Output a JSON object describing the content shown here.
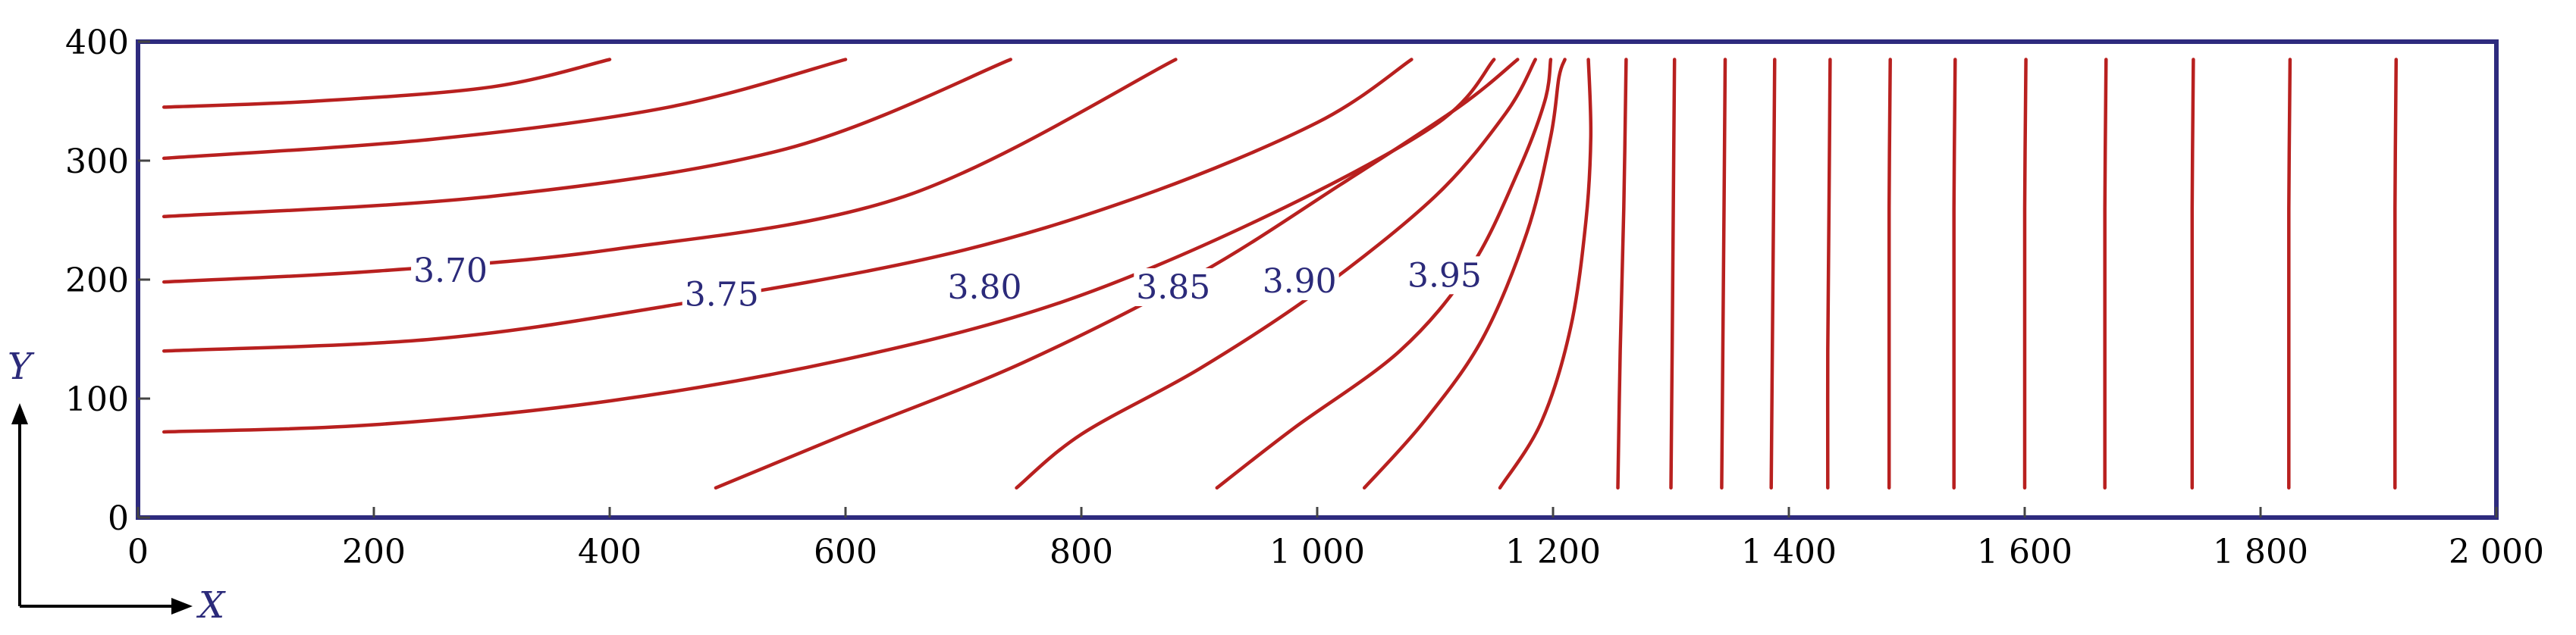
{
  "chart_data": {
    "type": "line",
    "title": "",
    "xlabel": "X",
    "ylabel": "Y",
    "xlim": [
      0,
      2000
    ],
    "ylim": [
      0,
      400
    ],
    "x_ticks": [
      {
        "value": 0,
        "label": "0"
      },
      {
        "value": 200,
        "label": "200"
      },
      {
        "value": 400,
        "label": "400"
      },
      {
        "value": 600,
        "label": "600"
      },
      {
        "value": 800,
        "label": "800"
      },
      {
        "value": 1000,
        "label": "1 000"
      },
      {
        "value": 1200,
        "label": "1 200"
      },
      {
        "value": 1400,
        "label": "1 400"
      },
      {
        "value": 1600,
        "label": "1 600"
      },
      {
        "value": 1800,
        "label": "1 800"
      },
      {
        "value": 2000,
        "label": "2 000"
      }
    ],
    "y_ticks": [
      {
        "value": 0,
        "label": "0"
      },
      {
        "value": 100,
        "label": "100"
      },
      {
        "value": 200,
        "label": "200"
      },
      {
        "value": 300,
        "label": "300"
      },
      {
        "value": 400,
        "label": "400"
      }
    ],
    "grid": false,
    "colors": {
      "contour": "#b8201f",
      "frame": "#2e2b7e",
      "label": "#2b2a7a"
    },
    "contour_labels": [
      {
        "text": "3.70",
        "x": 265,
        "y": 207
      },
      {
        "text": "3.75",
        "x": 495,
        "y": 187
      },
      {
        "text": "3.80",
        "x": 718,
        "y": 193
      },
      {
        "text": "3.85",
        "x": 878,
        "y": 193
      },
      {
        "text": "3.90",
        "x": 985,
        "y": 198
      },
      {
        "text": "3.95",
        "x": 1108,
        "y": 203
      }
    ],
    "series": [
      {
        "values": [
          [
            22,
            345
          ],
          [
            150,
            350
          ],
          [
            300,
            362
          ],
          [
            400,
            385
          ]
        ]
      },
      {
        "values": [
          [
            22,
            302
          ],
          [
            250,
            318
          ],
          [
            450,
            345
          ],
          [
            600,
            385
          ]
        ]
      },
      {
        "values": [
          [
            22,
            253
          ],
          [
            300,
            270
          ],
          [
            550,
            310
          ],
          [
            740,
            385
          ]
        ]
      },
      {
        "values": [
          [
            22,
            198
          ],
          [
            200,
            207
          ],
          [
            400,
            225
          ],
          [
            650,
            270
          ],
          [
            880,
            385
          ]
        ]
      },
      {
        "values": [
          [
            22,
            140
          ],
          [
            250,
            150
          ],
          [
            450,
            178
          ],
          [
            680,
            220
          ],
          [
            850,
            270
          ],
          [
            1000,
            332
          ],
          [
            1080,
            385
          ]
        ]
      },
      {
        "values": [
          [
            22,
            72
          ],
          [
            200,
            78
          ],
          [
            400,
            98
          ],
          [
            600,
            133
          ],
          [
            780,
            180
          ],
          [
            950,
            250
          ],
          [
            1100,
            330
          ],
          [
            1150,
            385
          ]
        ]
      },
      {
        "values": [
          [
            490,
            25
          ],
          [
            600,
            70
          ],
          [
            750,
            130
          ],
          [
            900,
            205
          ],
          [
            1020,
            280
          ],
          [
            1120,
            345
          ],
          [
            1170,
            385
          ]
        ]
      },
      {
        "values": [
          [
            745,
            25
          ],
          [
            800,
            70
          ],
          [
            900,
            125
          ],
          [
            1000,
            190
          ],
          [
            1100,
            270
          ],
          [
            1160,
            340
          ],
          [
            1185,
            385
          ]
        ]
      },
      {
        "values": [
          [
            915,
            25
          ],
          [
            980,
            75
          ],
          [
            1070,
            140
          ],
          [
            1130,
            210
          ],
          [
            1170,
            290
          ],
          [
            1193,
            350
          ],
          [
            1198,
            385
          ]
        ]
      },
      {
        "values": [
          [
            1040,
            25
          ],
          [
            1090,
            80
          ],
          [
            1140,
            150
          ],
          [
            1178,
            240
          ],
          [
            1198,
            320
          ],
          [
            1205,
            370
          ],
          [
            1210,
            385
          ]
        ]
      },
      {
        "values": [
          [
            1155,
            25
          ],
          [
            1190,
            80
          ],
          [
            1215,
            160
          ],
          [
            1228,
            250
          ],
          [
            1232,
            320
          ],
          [
            1230,
            385
          ]
        ]
      },
      {
        "values": [
          [
            1255,
            25
          ],
          [
            1257,
            140
          ],
          [
            1260,
            260
          ],
          [
            1262,
            385
          ]
        ]
      },
      {
        "values": [
          [
            1300,
            25
          ],
          [
            1301,
            140
          ],
          [
            1302,
            260
          ],
          [
            1303,
            385
          ]
        ]
      },
      {
        "values": [
          [
            1343,
            25
          ],
          [
            1344,
            140
          ],
          [
            1345,
            260
          ],
          [
            1346,
            385
          ]
        ]
      },
      {
        "values": [
          [
            1385,
            25
          ],
          [
            1386,
            140
          ],
          [
            1387,
            260
          ],
          [
            1388,
            385
          ]
        ]
      },
      {
        "values": [
          [
            1433,
            25
          ],
          [
            1433,
            140
          ],
          [
            1434,
            260
          ],
          [
            1435,
            385
          ]
        ]
      },
      {
        "values": [
          [
            1485,
            25
          ],
          [
            1485,
            140
          ],
          [
            1485,
            260
          ],
          [
            1486,
            385
          ]
        ]
      },
      {
        "values": [
          [
            1540,
            25
          ],
          [
            1540,
            140
          ],
          [
            1540,
            260
          ],
          [
            1541,
            385
          ]
        ]
      },
      {
        "values": [
          [
            1600,
            25
          ],
          [
            1600,
            140
          ],
          [
            1600,
            260
          ],
          [
            1601,
            385
          ]
        ]
      },
      {
        "values": [
          [
            1668,
            25
          ],
          [
            1668,
            140
          ],
          [
            1668,
            260
          ],
          [
            1669,
            385
          ]
        ]
      },
      {
        "values": [
          [
            1742,
            25
          ],
          [
            1742,
            140
          ],
          [
            1742,
            260
          ],
          [
            1743,
            385
          ]
        ]
      },
      {
        "values": [
          [
            1824,
            25
          ],
          [
            1824,
            140
          ],
          [
            1824,
            260
          ],
          [
            1825,
            385
          ]
        ]
      },
      {
        "values": [
          [
            1914,
            25
          ],
          [
            1914,
            140
          ],
          [
            1914,
            260
          ],
          [
            1915,
            385
          ]
        ]
      }
    ]
  }
}
